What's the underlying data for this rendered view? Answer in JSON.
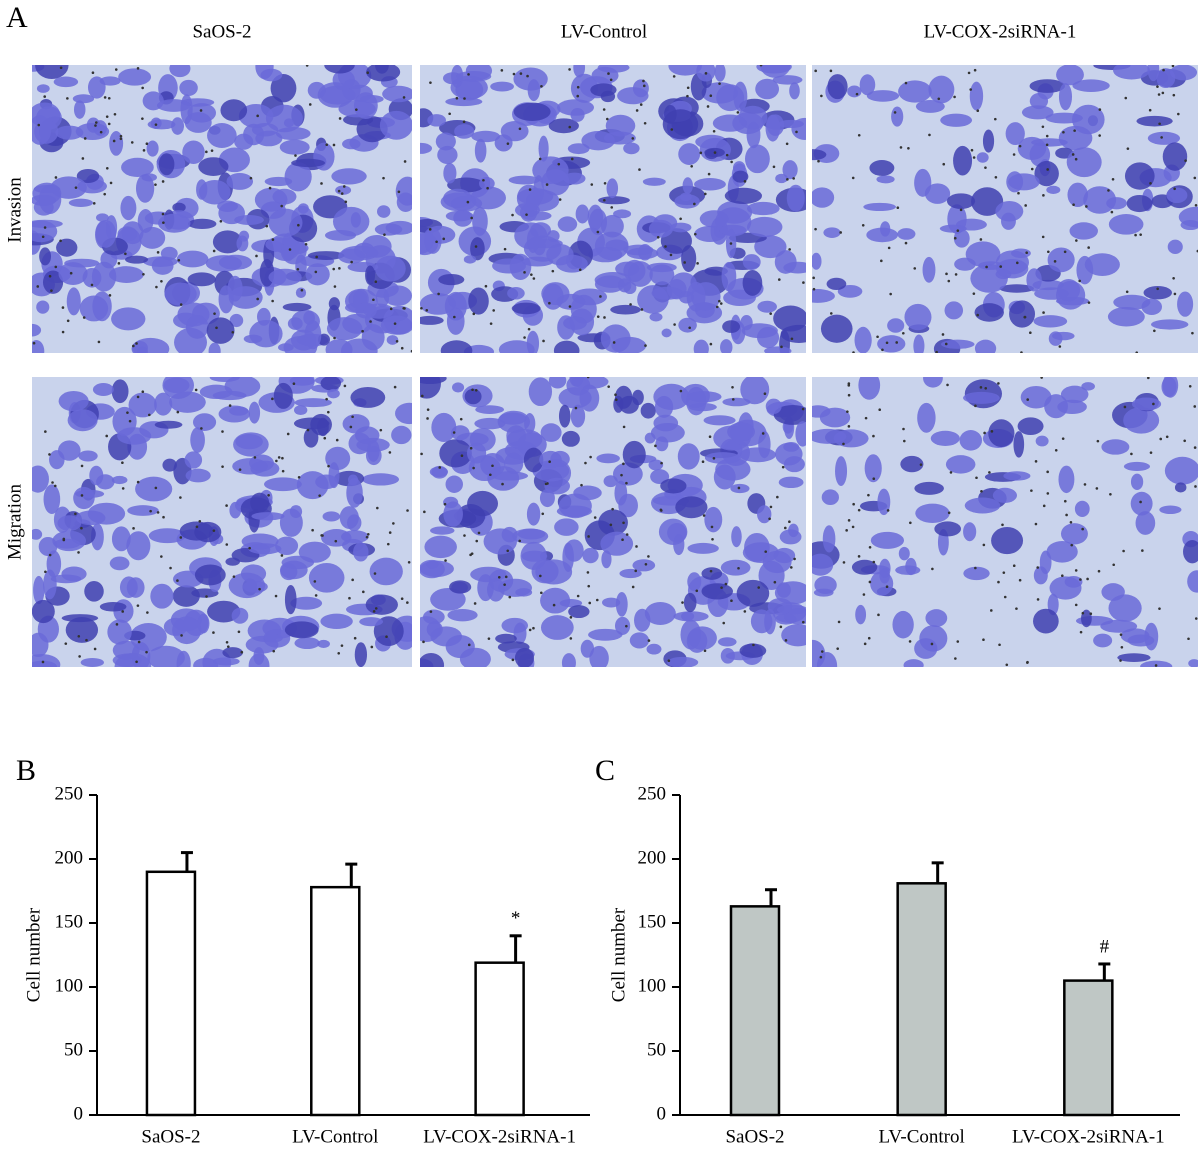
{
  "panel_a": {
    "label": "A",
    "columns": [
      "SaOS-2",
      "LV-Control",
      "LV-COX-2siRNA-1"
    ],
    "rows": [
      "Invasion",
      "Migration"
    ]
  },
  "chart_data": [
    {
      "type": "bar",
      "panel_label": "B",
      "y_label": "Cell number",
      "categories": [
        "SaOS-2",
        "LV-Control",
        "LV-COX-2siRNA-1"
      ],
      "values": [
        190,
        178,
        119
      ],
      "errors": [
        15,
        18,
        21
      ],
      "annotations": [
        null,
        null,
        "*"
      ],
      "color": "#ffffff",
      "ylim": [
        0,
        250
      ],
      "yticks": [
        0,
        50,
        100,
        150,
        200,
        250
      ]
    },
    {
      "type": "bar",
      "panel_label": "C",
      "y_label": "Cell number",
      "categories": [
        "SaOS-2",
        "LV-Control",
        "LV-COX-2siRNA-1"
      ],
      "values": [
        163,
        181,
        105
      ],
      "errors": [
        13,
        16,
        13
      ],
      "annotations": [
        null,
        null,
        "#"
      ],
      "color": "#bfc7c5",
      "ylim": [
        0,
        250
      ],
      "yticks": [
        0,
        50,
        100,
        150,
        200,
        250
      ]
    }
  ]
}
